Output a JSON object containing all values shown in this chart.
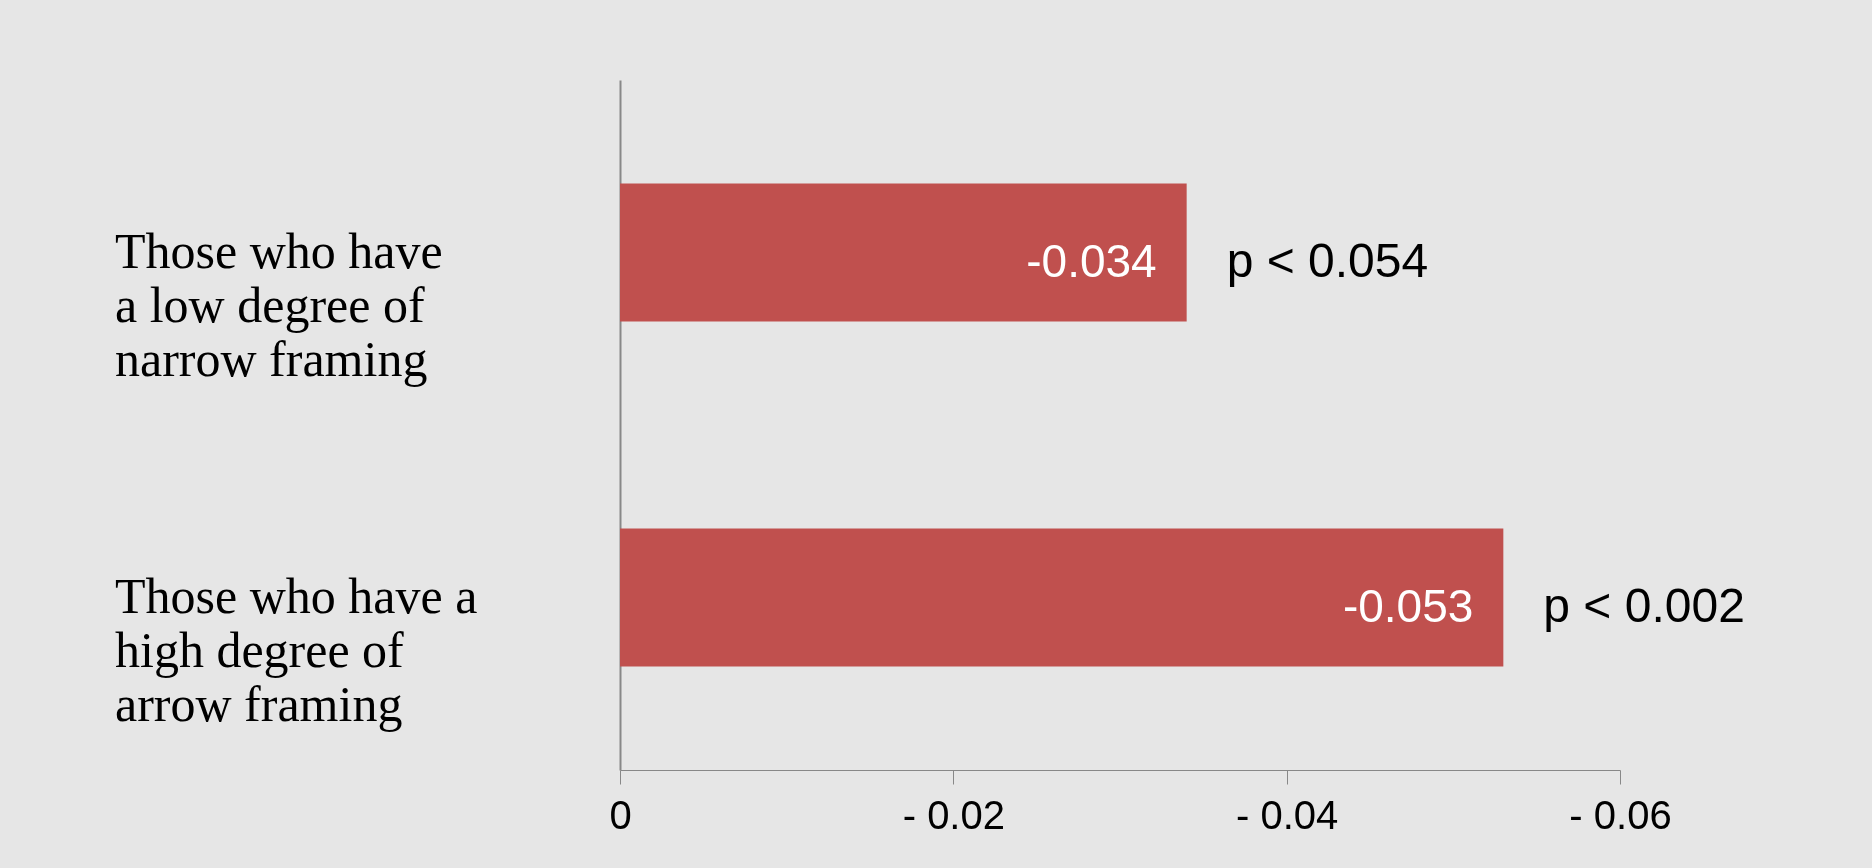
{
  "chart_data": {
    "type": "bar",
    "orientation": "horizontal",
    "categories": [
      "Those who have a low degree of narrow framing",
      "Those who have a high degree of arrow framing"
    ],
    "values": [
      -0.034,
      -0.053
    ],
    "color": "#c0504e",
    "xlim": [
      0,
      -0.06
    ],
    "xticks": [
      0,
      {
        "value": -0.02,
        "label": "- 0.02"
      },
      {
        "value": -0.04,
        "label": "- 0.04"
      },
      {
        "value": -0.06,
        "label": "- 0.06"
      }
    ],
    "data_labels": true,
    "grid": false,
    "annotations": [
      "p < 0.054",
      "p < 0.002"
    ]
  }
}
